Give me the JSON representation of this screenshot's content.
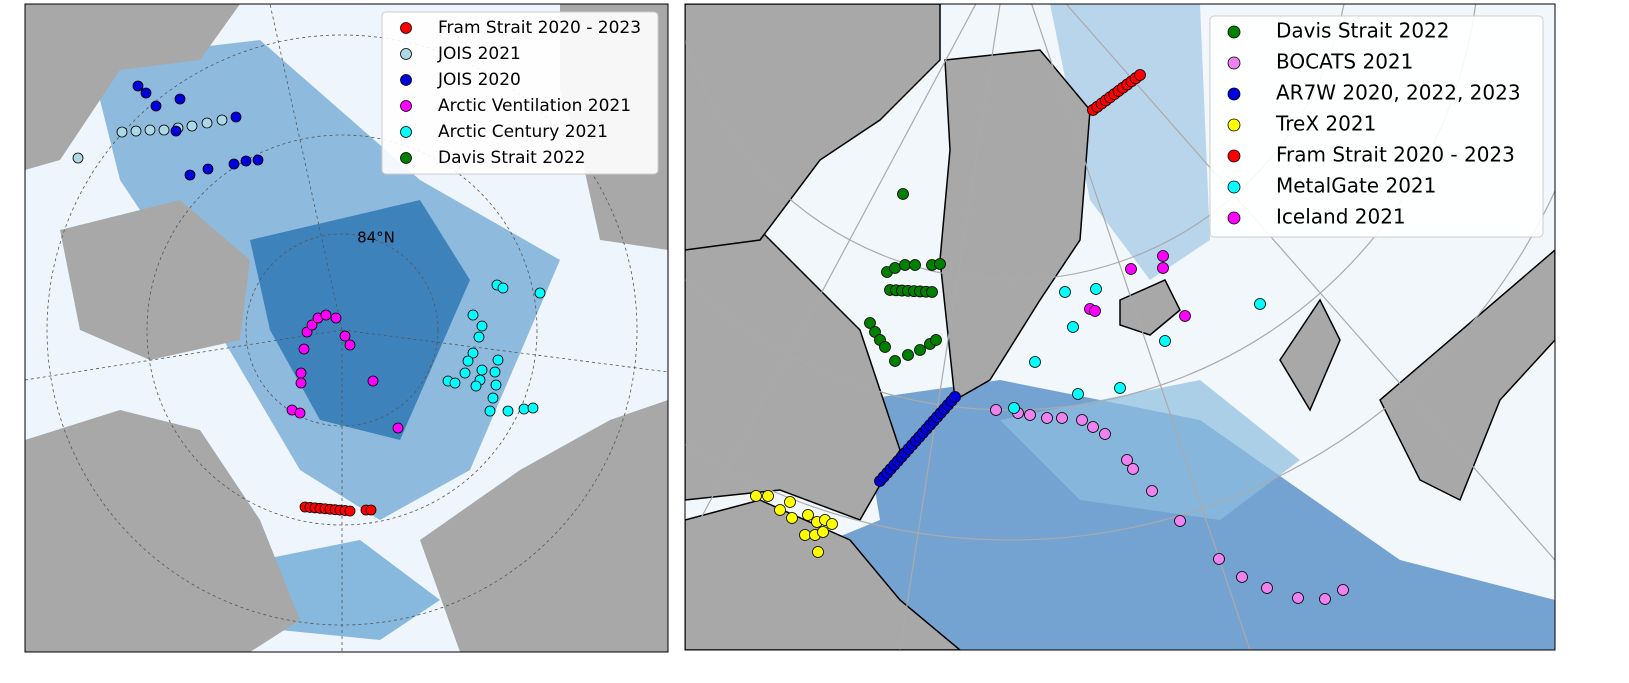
{
  "maps": [
    {
      "legend": [
        {
          "label": "Fram Strait 2020 - 2023",
          "color": "#ff0000"
        },
        {
          "label": "JOIS 2021",
          "color": "#add8e6"
        },
        {
          "label": "JOIS 2020",
          "color": "#0000dd"
        },
        {
          "label": "Arctic Ventilation 2021",
          "color": "#ff00ff"
        },
        {
          "label": "Arctic Century 2021",
          "color": "#00ffff"
        },
        {
          "label": "Davis Strait 2022",
          "color": "#007f00"
        }
      ],
      "annotations": [
        "84°N"
      ]
    },
    {
      "legend": [
        {
          "label": "Davis Strait 2022",
          "color": "#007f00"
        },
        {
          "label": "BOCATS 2021",
          "color": "#ee82ee"
        },
        {
          "label": "AR7W 2020, 2022, 2023",
          "color": "#0000dd"
        },
        {
          "label": "TreX 2021",
          "color": "#ffff00"
        },
        {
          "label": "Fram Strait 2020 - 2023",
          "color": "#ff0000"
        },
        {
          "label": "MetalGate 2021",
          "color": "#00ffff"
        },
        {
          "label": "Iceland 2021",
          "color": "#ff00ff"
        }
      ]
    }
  ]
}
